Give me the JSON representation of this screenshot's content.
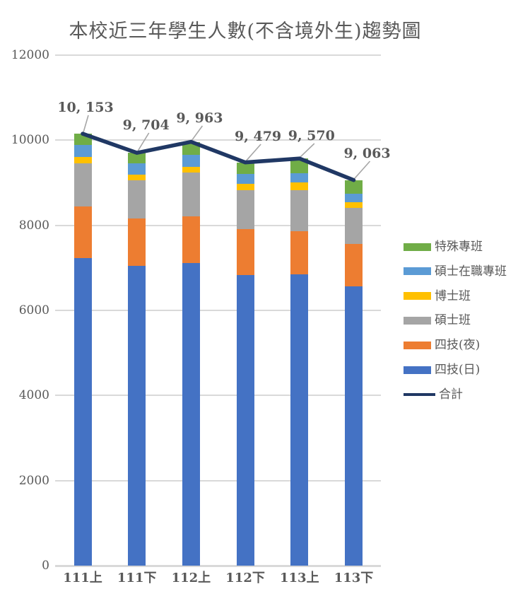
{
  "chart_data": {
    "type": "bar",
    "subtype": "stacked-column-with-total-line",
    "title": "本校近三年學生人數(不含境外生)趨勢圖",
    "categories": [
      "111上",
      "111下",
      "112上",
      "112下",
      "113上",
      "113下"
    ],
    "series": [
      {
        "name": "四技(日)",
        "color": "#4472C4",
        "values": [
          7226,
          7043,
          7110,
          6830,
          6850,
          6560
        ]
      },
      {
        "name": "四技(夜)",
        "color": "#ED7D31",
        "values": [
          1210,
          1122,
          1098,
          1085,
          1010,
          995
        ]
      },
      {
        "name": "碩士班",
        "color": "#A5A5A5",
        "values": [
          1015,
          887,
          1038,
          915,
          970,
          860
        ]
      },
      {
        "name": "博士班",
        "color": "#FFC000",
        "values": [
          149,
          138,
          127,
          138,
          180,
          125
        ]
      },
      {
        "name": "碩士在職專班",
        "color": "#5B9BD5",
        "values": [
          283,
          266,
          278,
          232,
          210,
          195
        ]
      },
      {
        "name": "特殊專班",
        "color": "#70AD47",
        "values": [
          270,
          248,
          312,
          279,
          350,
          328
        ]
      }
    ],
    "line_series": {
      "name": "合計",
      "color": "#203864",
      "values": [
        10153,
        9704,
        9963,
        9479,
        9570,
        9063
      ],
      "data_labels": [
        "10, 153",
        "9, 704",
        "9, 963",
        "9, 479",
        "9, 570",
        "9, 063"
      ]
    },
    "y_axis": {
      "min": 0,
      "max": 12000,
      "step": 2000,
      "tick_labels": [
        "12000",
        "10000",
        "8000",
        "6000",
        "4000",
        "2000",
        "0"
      ]
    },
    "legend": {
      "position": "right",
      "items": [
        {
          "label": "特殊專班",
          "color": "#70AD47",
          "swatch": "box"
        },
        {
          "label": "碩士在職專班",
          "color": "#5B9BD5",
          "swatch": "box"
        },
        {
          "label": "博士班",
          "color": "#FFC000",
          "swatch": "box"
        },
        {
          "label": "碩士班",
          "color": "#A5A5A5",
          "swatch": "box"
        },
        {
          "label": "四技(夜)",
          "color": "#ED7D31",
          "swatch": "box"
        },
        {
          "label": "四技(日)",
          "color": "#4472C4",
          "swatch": "box"
        },
        {
          "label": "合計",
          "color": "#203864",
          "swatch": "line"
        }
      ]
    },
    "colors": {
      "text": "#595959",
      "gridline": "#D9D9D9",
      "leader_line": "#A6A6A6",
      "background": "#FFFFFF"
    },
    "grid": "horizontal-only"
  }
}
